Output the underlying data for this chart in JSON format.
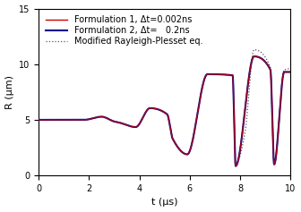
{
  "title": "",
  "xlabel": "t (μs)",
  "ylabel": "R (μm)",
  "xlim": [
    0,
    10
  ],
  "ylim": [
    0,
    15
  ],
  "xticks": [
    0,
    2,
    4,
    6,
    8,
    10
  ],
  "yticks": [
    0,
    5,
    10,
    15
  ],
  "legend": [
    {
      "label": "Formulation 1, Δt=0.002ns",
      "color": "#cc0000",
      "lw": 1.0,
      "ls": "-"
    },
    {
      "label": "Formulation 2, Δt=   0.2ns",
      "color": "#00008b",
      "lw": 1.5,
      "ls": "-"
    },
    {
      "label": "Modified Rayleigh-Plesset eq.",
      "color": "#555555",
      "lw": 0.9,
      "ls": ":"
    }
  ],
  "figsize": [
    3.36,
    2.37
  ],
  "dpi": 100,
  "bg_color": "#ffffff",
  "font_size": 8,
  "legend_font_size": 7,
  "curve_landmarks": {
    "t": [
      0.0,
      1.8,
      2.5,
      3.0,
      3.2,
      3.85,
      4.42,
      5.1,
      5.32,
      5.9,
      6.7,
      7.7,
      7.82,
      8.55,
      9.2,
      9.35,
      9.75,
      10.0
    ],
    "R": [
      5.0,
      5.0,
      5.28,
      4.85,
      4.75,
      4.35,
      6.05,
      5.5,
      3.3,
      1.9,
      9.1,
      9.0,
      0.85,
      10.7,
      9.5,
      1.0,
      9.3,
      9.3
    ]
  },
  "rp_landmarks": {
    "t": [
      8.2,
      8.55,
      9.2,
      9.35,
      9.75,
      10.0
    ],
    "R": [
      4.0,
      11.3,
      9.7,
      1.05,
      9.5,
      9.6
    ]
  },
  "rp_start_t": 7.9
}
